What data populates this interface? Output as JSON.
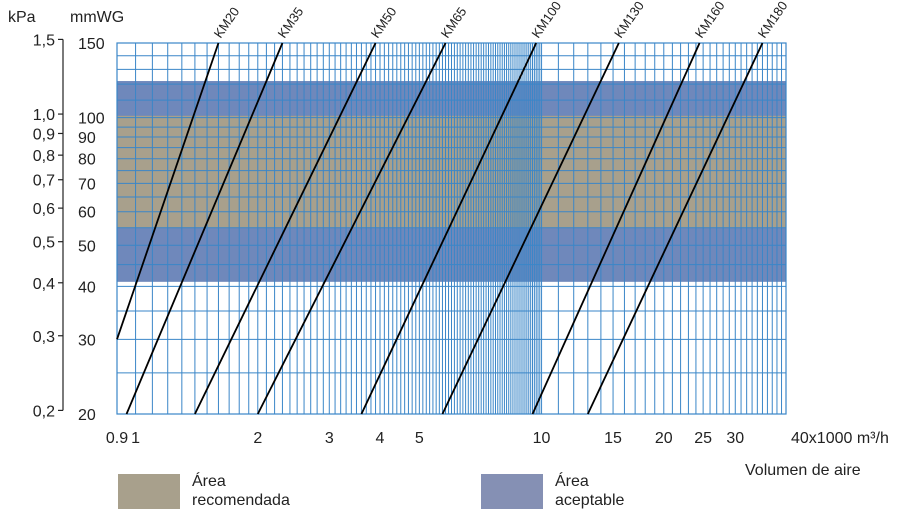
{
  "chart_data": {
    "type": "line",
    "left_axis_unit": "kPa",
    "right_axis_unit": "mmWG",
    "kpa_ticks": [
      "1,5",
      "1,0",
      "0,9",
      "0,8",
      "0,7",
      "0,6",
      "0,5",
      "0,4",
      "0,3",
      "0,2"
    ],
    "kpa_tick_values": [
      1.5,
      1.0,
      0.9,
      0.8,
      0.7,
      0.6,
      0.5,
      0.4,
      0.3,
      0.2
    ],
    "mmwg_ticks": [
      "150",
      "100",
      "90",
      "80",
      "70",
      "60",
      "50",
      "40",
      "30",
      "20"
    ],
    "mmwg_tick_values": [
      150,
      100,
      90,
      80,
      70,
      60,
      50,
      40,
      30,
      20
    ],
    "x_ticks": [
      "0.9",
      "1",
      "2",
      "3",
      "4",
      "5",
      "10",
      "15",
      "20",
      "25",
      "30",
      "40x1000 m³/h"
    ],
    "x_tick_values": [
      0.9,
      1,
      2,
      3,
      4,
      5,
      10,
      15,
      20,
      25,
      30,
      40
    ],
    "xlabel": "Volumen de aire",
    "x_scale": "log",
    "y_scale": "log",
    "xlim": [
      0.9,
      40
    ],
    "ylim_mmwg": [
      20,
      150
    ],
    "grid": true,
    "bands": [
      {
        "name": "Área aceptable",
        "y_range_mmwg": [
          41,
          122
        ],
        "color": "#6f88bb"
      },
      {
        "name": "Área recomendada",
        "y_range_mmwg": [
          55,
          101
        ],
        "color": "#a8a08c"
      }
    ],
    "series": [
      {
        "name": "KM20",
        "x": [
          0.9,
          1.6
        ],
        "y": [
          30,
          150
        ]
      },
      {
        "name": "KM35",
        "x": [
          0.95,
          2.3
        ],
        "y": [
          20,
          150
        ]
      },
      {
        "name": "KM50",
        "x": [
          1.4,
          3.9
        ],
        "y": [
          20,
          150
        ]
      },
      {
        "name": "KM65",
        "x": [
          2.0,
          5.8
        ],
        "y": [
          20,
          150
        ]
      },
      {
        "name": "KM100",
        "x": [
          3.6,
          9.7
        ],
        "y": [
          20,
          150
        ]
      },
      {
        "name": "KM130",
        "x": [
          5.7,
          15.5
        ],
        "y": [
          20,
          150
        ]
      },
      {
        "name": "KM160",
        "x": [
          9.5,
          24.5
        ],
        "y": [
          20,
          150
        ]
      },
      {
        "name": "KM180",
        "x": [
          13.0,
          35.0
        ],
        "y": [
          20,
          150
        ]
      }
    ]
  },
  "legend": [
    {
      "label": "Área\nrecomendada",
      "color": "#a8a08c"
    },
    {
      "label": "Área\naceptable",
      "color": "#8590b4"
    }
  ]
}
